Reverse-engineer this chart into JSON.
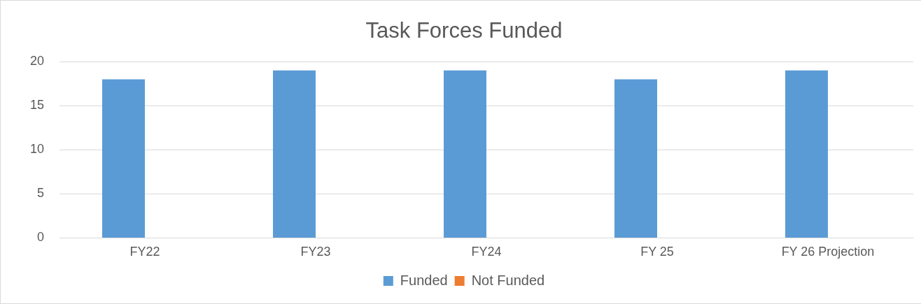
{
  "chart_data": {
    "type": "bar",
    "title": "Task Forces Funded",
    "categories": [
      "FY22",
      "FY23",
      "FY24",
      "FY 25",
      "FY 26 Projection"
    ],
    "series": [
      {
        "name": "Funded",
        "color": "#5b9bd5",
        "values": [
          18,
          19,
          19,
          18,
          19
        ]
      },
      {
        "name": "Not Funded",
        "color": "#ed7d31",
        "values": [
          0,
          0,
          0,
          0,
          0
        ]
      }
    ],
    "ylim": [
      0,
      20
    ],
    "yticks": [
      0,
      5,
      10,
      15,
      20
    ],
    "grid": "y",
    "legend": "bottom"
  }
}
